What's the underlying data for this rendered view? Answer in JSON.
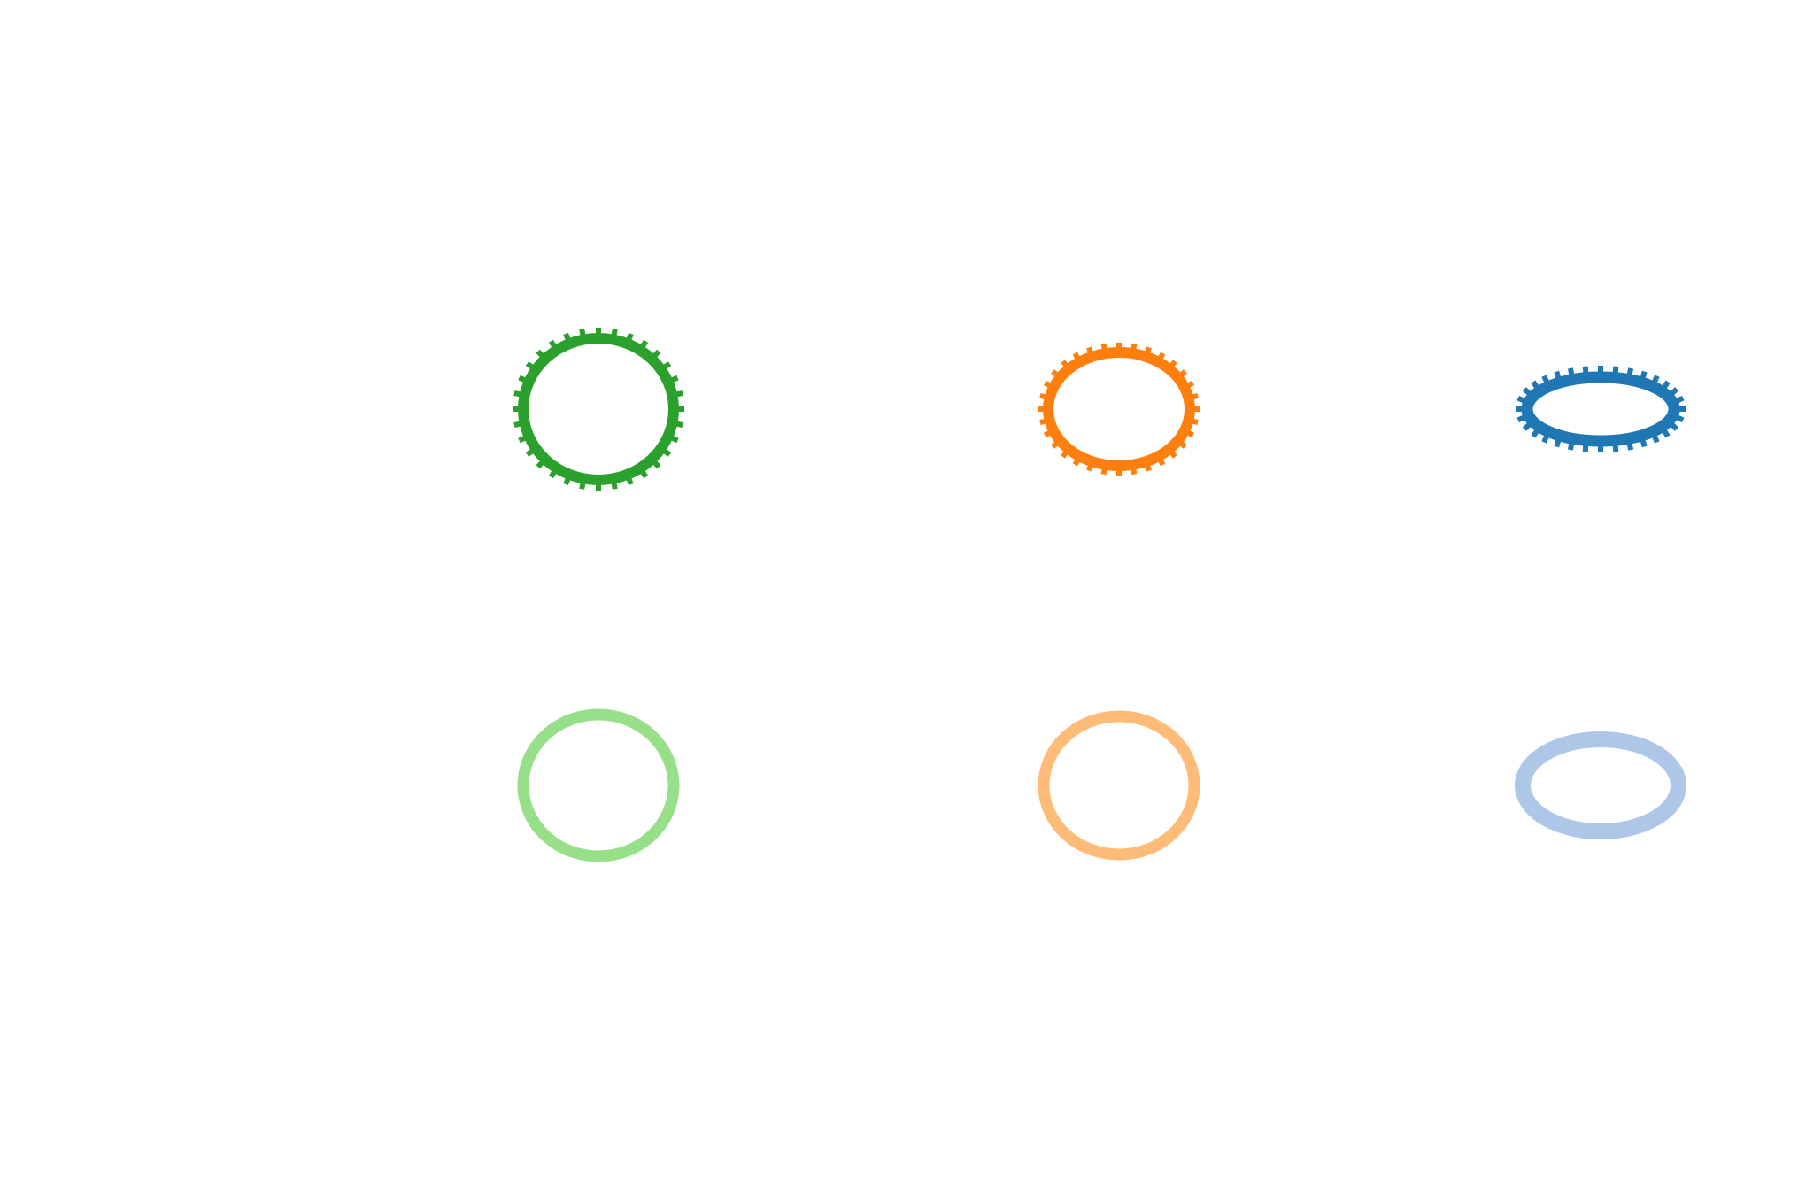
{
  "background": "#ffffff",
  "rows": [
    {
      "name": "ticked-row",
      "shapes": [
        {
          "name": "ticked-circle-green",
          "color": "#2ca02c",
          "ticked": true,
          "shape": "circle"
        },
        {
          "name": "ticked-ellipse-orange",
          "color": "#ff7f0e",
          "ticked": true,
          "shape": "ellipse"
        },
        {
          "name": "ticked-ellipse-blue",
          "color": "#1f77b4",
          "ticked": true,
          "shape": "flat-ellipse"
        }
      ]
    },
    {
      "name": "plain-row",
      "shapes": [
        {
          "name": "plain-circle-light-green",
          "color": "#98df8a",
          "ticked": false,
          "shape": "circle"
        },
        {
          "name": "plain-ellipse-light-orange",
          "color": "#ffbb78",
          "ticked": false,
          "shape": "ellipse"
        },
        {
          "name": "plain-ellipse-light-blue",
          "color": "#aec7e8",
          "ticked": false,
          "shape": "flat-ellipse"
        }
      ]
    }
  ]
}
